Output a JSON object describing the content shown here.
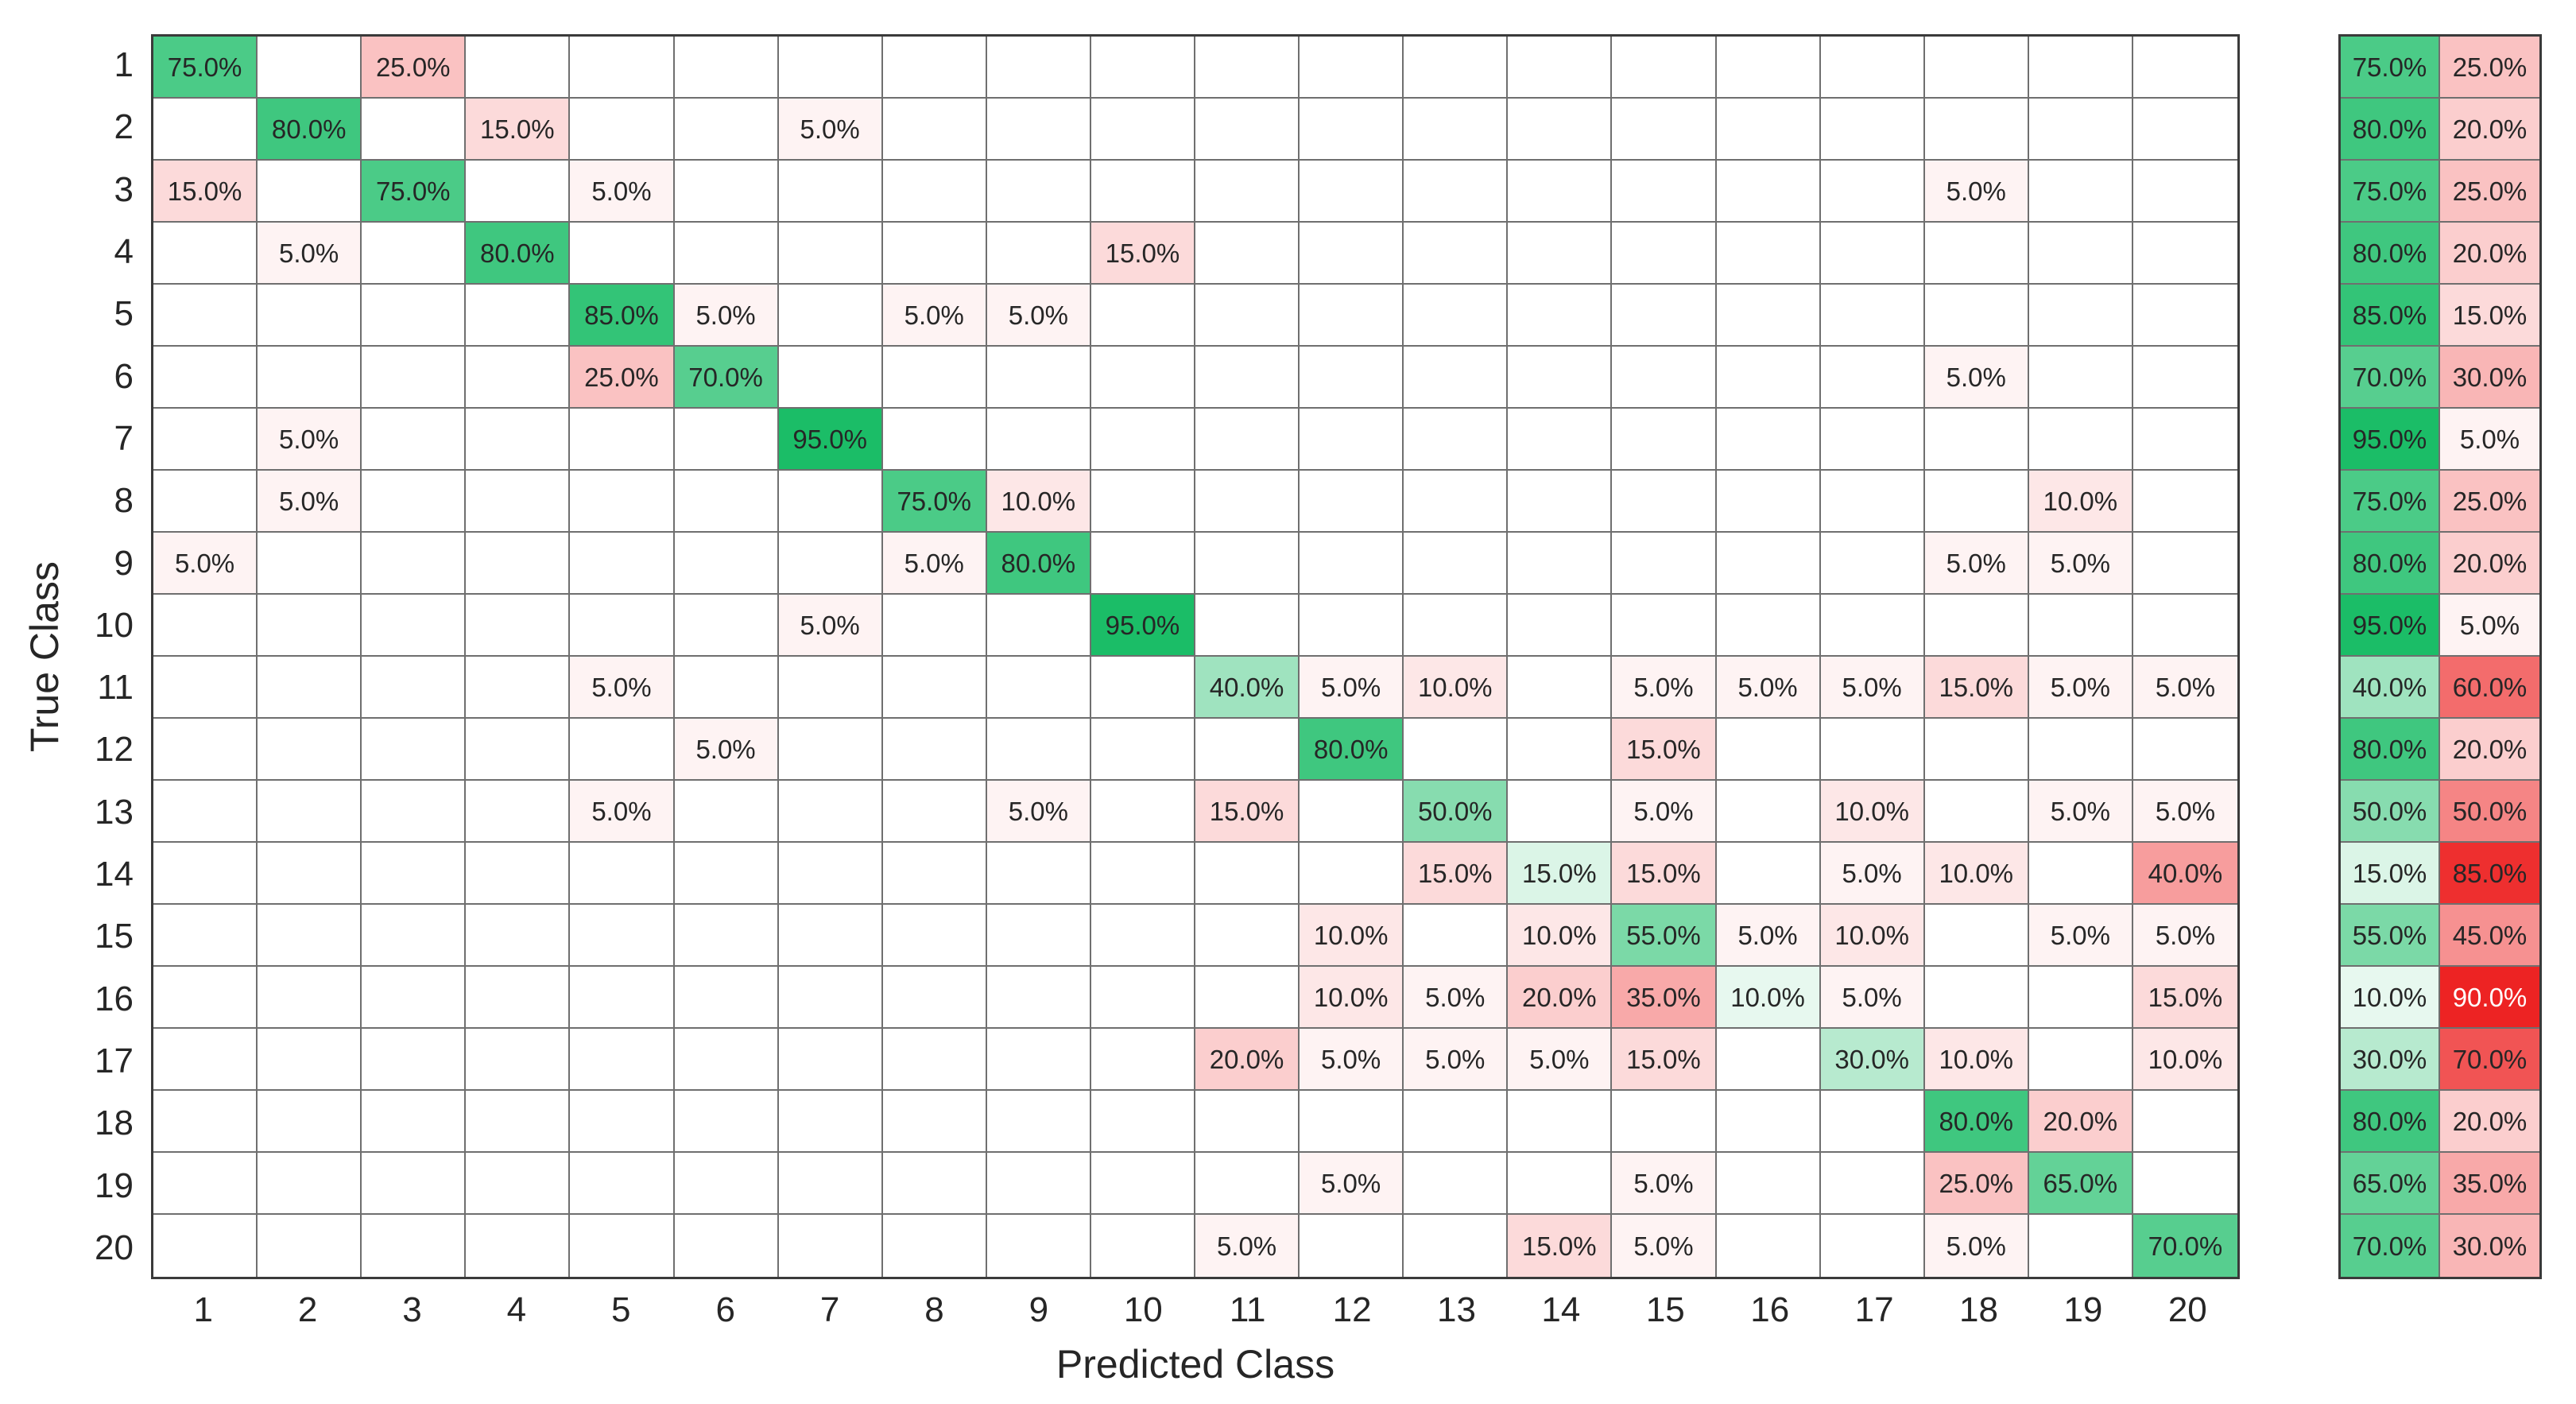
{
  "chart_data": {
    "type": "heatmap",
    "subtype": "confusion-matrix",
    "xlabel": "Predicted Class",
    "ylabel": "True Class",
    "classes": [
      "1",
      "2",
      "3",
      "4",
      "5",
      "6",
      "7",
      "8",
      "9",
      "10",
      "11",
      "12",
      "13",
      "14",
      "15",
      "16",
      "17",
      "18",
      "19",
      "20"
    ],
    "cell_value_suffix": "%",
    "matrix_percent": [
      [
        75,
        0,
        25,
        0,
        0,
        0,
        0,
        0,
        0,
        0,
        0,
        0,
        0,
        0,
        0,
        0,
        0,
        0,
        0,
        0
      ],
      [
        0,
        80,
        0,
        15,
        0,
        0,
        5,
        0,
        0,
        0,
        0,
        0,
        0,
        0,
        0,
        0,
        0,
        0,
        0,
        0
      ],
      [
        15,
        0,
        75,
        0,
        5,
        0,
        0,
        0,
        0,
        0,
        0,
        0,
        0,
        0,
        0,
        0,
        0,
        5,
        0,
        0
      ],
      [
        0,
        5,
        0,
        80,
        0,
        0,
        0,
        0,
        0,
        15,
        0,
        0,
        0,
        0,
        0,
        0,
        0,
        0,
        0,
        0
      ],
      [
        0,
        0,
        0,
        0,
        85,
        5,
        0,
        5,
        5,
        0,
        0,
        0,
        0,
        0,
        0,
        0,
        0,
        0,
        0,
        0
      ],
      [
        0,
        0,
        0,
        0,
        25,
        70,
        0,
        0,
        0,
        0,
        0,
        0,
        0,
        0,
        0,
        0,
        0,
        5,
        0,
        0
      ],
      [
        0,
        5,
        0,
        0,
        0,
        0,
        95,
        0,
        0,
        0,
        0,
        0,
        0,
        0,
        0,
        0,
        0,
        0,
        0,
        0
      ],
      [
        0,
        5,
        0,
        0,
        0,
        0,
        0,
        75,
        10,
        0,
        0,
        0,
        0,
        0,
        0,
        0,
        0,
        0,
        10,
        0
      ],
      [
        5,
        0,
        0,
        0,
        0,
        0,
        0,
        5,
        80,
        0,
        0,
        0,
        0,
        0,
        0,
        0,
        0,
        5,
        5,
        0
      ],
      [
        0,
        0,
        0,
        0,
        0,
        0,
        5,
        0,
        0,
        95,
        0,
        0,
        0,
        0,
        0,
        0,
        0,
        0,
        0,
        0
      ],
      [
        0,
        0,
        0,
        0,
        5,
        0,
        0,
        0,
        0,
        0,
        40,
        5,
        10,
        0,
        5,
        5,
        5,
        15,
        5,
        5
      ],
      [
        0,
        0,
        0,
        0,
        0,
        5,
        0,
        0,
        0,
        0,
        0,
        80,
        0,
        0,
        15,
        0,
        0,
        0,
        0,
        0
      ],
      [
        0,
        0,
        0,
        0,
        5,
        0,
        0,
        0,
        5,
        0,
        15,
        0,
        50,
        0,
        5,
        0,
        10,
        0,
        5,
        5
      ],
      [
        0,
        0,
        0,
        0,
        0,
        0,
        0,
        0,
        0,
        0,
        0,
        0,
        15,
        15,
        15,
        0,
        5,
        10,
        0,
        40
      ],
      [
        0,
        0,
        0,
        0,
        0,
        0,
        0,
        0,
        0,
        0,
        0,
        10,
        0,
        10,
        55,
        5,
        10,
        0,
        5,
        5
      ],
      [
        0,
        0,
        0,
        0,
        0,
        0,
        0,
        0,
        0,
        0,
        0,
        10,
        5,
        20,
        35,
        10,
        5,
        0,
        0,
        15
      ],
      [
        0,
        0,
        0,
        0,
        0,
        0,
        0,
        0,
        0,
        0,
        20,
        5,
        5,
        5,
        15,
        0,
        30,
        10,
        0,
        10
      ],
      [
        0,
        0,
        0,
        0,
        0,
        0,
        0,
        0,
        0,
        0,
        0,
        0,
        0,
        0,
        0,
        0,
        0,
        80,
        20,
        0
      ],
      [
        0,
        0,
        0,
        0,
        0,
        0,
        0,
        0,
        0,
        0,
        0,
        5,
        0,
        0,
        5,
        0,
        0,
        25,
        65,
        0
      ],
      [
        0,
        0,
        0,
        0,
        0,
        0,
        0,
        0,
        0,
        0,
        5,
        0,
        0,
        15,
        5,
        0,
        0,
        5,
        0,
        70
      ]
    ],
    "row_summary": {
      "true_positive_rate": [
        75,
        80,
        75,
        80,
        85,
        70,
        95,
        75,
        80,
        95,
        40,
        80,
        50,
        15,
        55,
        10,
        30,
        80,
        65,
        70
      ],
      "false_negative_rate": [
        25,
        20,
        25,
        20,
        15,
        30,
        5,
        25,
        20,
        5,
        60,
        20,
        50,
        85,
        45,
        90,
        70,
        20,
        35,
        30
      ]
    },
    "layout": {
      "grid_on": true,
      "summary_panel_position": "right"
    },
    "colors": {
      "diagonal_green": "#0fb95f",
      "off_diagonal_red": "#eb0a0a",
      "grid_line": "#6f6f6f",
      "outer_border": "#3a3a3a",
      "text": "#262626",
      "white_text": "#ffffff",
      "white_text_threshold": 88
    }
  }
}
